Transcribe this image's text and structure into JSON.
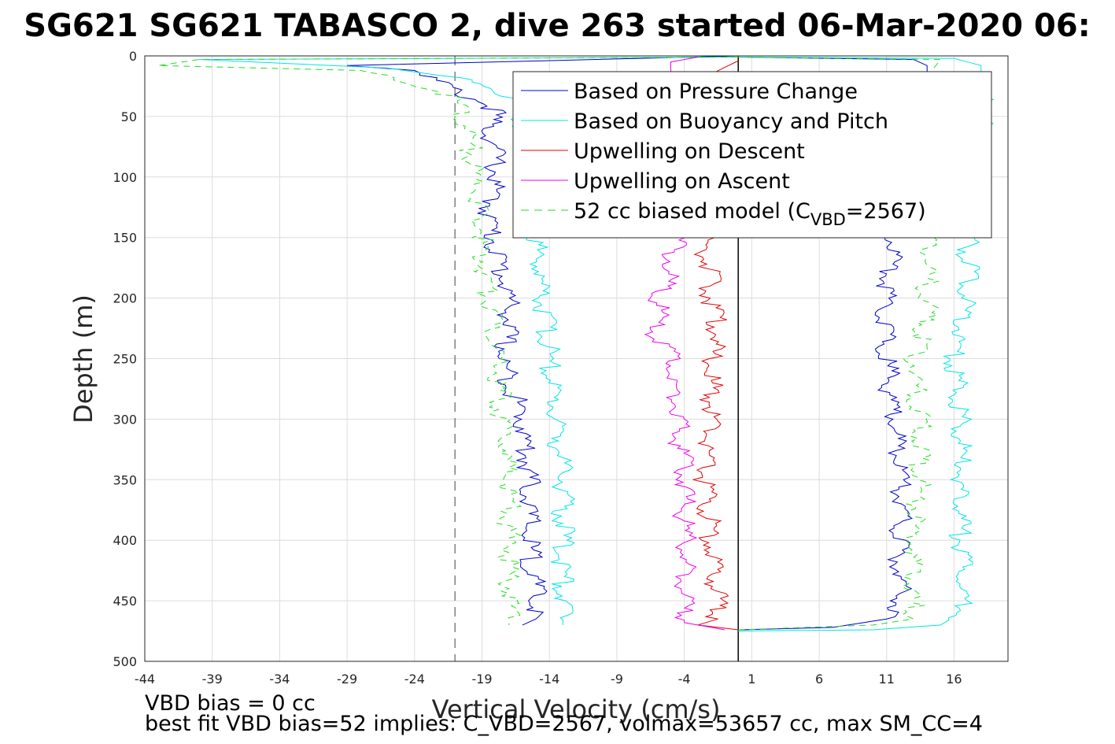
{
  "title": "SG621 SG621 TABASCO 2, dive 263 started 06-Mar-2020 06:",
  "footer": {
    "line1": "VBD bias = 0 cc",
    "line2": "best fit VBD bias=52 implies: C_VBD=2567, volmax=53657 cc, max SM_CC=4"
  },
  "chart_data": {
    "type": "line",
    "xlabel": "Vertical Velocity (cm/s)",
    "ylabel": "Depth (m)",
    "xlim": [
      -44,
      20
    ],
    "ylim": [
      0,
      500
    ],
    "y_reversed": true,
    "grid": true,
    "legend_placement": "top-right",
    "xticks": [
      -44,
      -39,
      -34,
      -29,
      -24,
      -19,
      -14,
      -9,
      -4,
      1,
      6,
      11,
      16
    ],
    "yticks": [
      0,
      50,
      100,
      150,
      200,
      250,
      300,
      350,
      400,
      450,
      500
    ],
    "reference_lines": [
      {
        "x": -21,
        "style": "dashed",
        "color": "#808080"
      },
      {
        "x": 0,
        "style": "solid",
        "color": "#000000"
      }
    ],
    "legend": [
      {
        "label": "Based on Pressure Change",
        "color": "#0000cc",
        "style": "solid"
      },
      {
        "label": "Based on Buoyancy and Pitch",
        "color": "#00e5e5",
        "style": "solid"
      },
      {
        "label": "Upwelling on Descent",
        "color": "#e00000",
        "style": "solid"
      },
      {
        "label": "Upwelling on Ascent",
        "color": "#ee00ee",
        "style": "solid"
      },
      {
        "label_main": "52 cc biased model (C",
        "label_sub": "VBD",
        "label_end": "=2567)",
        "color": "#22dd22",
        "style": "dashed"
      }
    ],
    "series": [
      {
        "name": "Based on Pressure Change",
        "color": "#0000cc",
        "descent": [
          [
            0,
            0
          ],
          [
            -29,
            8
          ],
          [
            -24,
            12
          ],
          [
            -22,
            22
          ],
          [
            -21,
            30
          ],
          [
            -19,
            38
          ],
          [
            -18,
            45
          ],
          [
            -18.5,
            60
          ],
          [
            -18,
            80
          ],
          [
            -18,
            100
          ],
          [
            -18.5,
            130
          ],
          [
            -18,
            160
          ],
          [
            -17,
            200
          ],
          [
            -17,
            220
          ],
          [
            -17.5,
            250
          ],
          [
            -16,
            300
          ],
          [
            -15.5,
            350
          ],
          [
            -15.5,
            400
          ],
          [
            -15,
            450
          ],
          [
            -15,
            465
          ],
          [
            -16,
            470
          ]
        ],
        "ascent": [
          [
            0,
            474
          ],
          [
            7,
            472
          ],
          [
            11,
            465
          ],
          [
            12,
            450
          ],
          [
            12,
            400
          ],
          [
            12,
            350
          ],
          [
            11.5,
            300
          ],
          [
            11,
            250
          ],
          [
            11,
            200
          ],
          [
            11.5,
            150
          ],
          [
            12,
            120
          ],
          [
            12.5,
            80
          ],
          [
            13,
            40
          ],
          [
            14,
            20
          ],
          [
            14,
            8
          ],
          [
            13,
            3
          ],
          [
            0,
            1
          ]
        ]
      },
      {
        "name": "Based on Buoyancy and Pitch",
        "color": "#00e5e5",
        "descent": [
          [
            0,
            1
          ],
          [
            -40,
            3
          ],
          [
            -26,
            10
          ],
          [
            -21,
            18
          ],
          [
            -18,
            25
          ],
          [
            -17,
            35
          ],
          [
            -16,
            60
          ],
          [
            -15.5,
            100
          ],
          [
            -15,
            150
          ],
          [
            -14.5,
            200
          ],
          [
            -14,
            250
          ],
          [
            -13.5,
            300
          ],
          [
            -13,
            350
          ],
          [
            -13,
            400
          ],
          [
            -13,
            450
          ],
          [
            -13,
            470
          ]
        ],
        "ascent": [
          [
            0,
            475
          ],
          [
            10,
            474
          ],
          [
            15,
            470
          ],
          [
            16.5,
            460
          ],
          [
            16.5,
            400
          ],
          [
            16.5,
            350
          ],
          [
            16.5,
            300
          ],
          [
            16,
            250
          ],
          [
            17,
            200
          ],
          [
            17,
            150
          ],
          [
            17,
            100
          ],
          [
            18,
            60
          ],
          [
            18,
            30
          ],
          [
            18,
            8
          ],
          [
            16,
            2
          ],
          [
            0,
            1
          ]
        ]
      },
      {
        "name": "Upwelling on Descent",
        "color": "#e00000",
        "values": [
          [
            0,
            4
          ],
          [
            -2,
            15
          ],
          [
            -2,
            40
          ],
          [
            -2.5,
            80
          ],
          [
            -2,
            120
          ],
          [
            -2.5,
            150
          ],
          [
            -2,
            200
          ],
          [
            -1.5,
            220
          ],
          [
            -2,
            250
          ],
          [
            -2,
            300
          ],
          [
            -2.5,
            350
          ],
          [
            -2,
            400
          ],
          [
            -1.5,
            450
          ],
          [
            -1.5,
            465
          ],
          [
            -3,
            470
          ],
          [
            0,
            474
          ]
        ]
      },
      {
        "name": "Upwelling on Ascent",
        "color": "#ee00ee",
        "values": [
          [
            -1,
            474
          ],
          [
            -4,
            468
          ],
          [
            -4,
            450
          ],
          [
            -4,
            400
          ],
          [
            -4,
            350
          ],
          [
            -4.5,
            300
          ],
          [
            -4.5,
            280
          ],
          [
            -5,
            250
          ],
          [
            -6,
            230
          ],
          [
            -6,
            210
          ],
          [
            -5.5,
            190
          ],
          [
            -5,
            170
          ],
          [
            -4.5,
            150
          ],
          [
            -4.5,
            100
          ],
          [
            -5,
            50
          ],
          [
            -5,
            20
          ],
          [
            -5,
            5
          ],
          [
            -3,
            1
          ]
        ]
      },
      {
        "name": "52 cc biased model (C_VBD=2567)",
        "color": "#22dd22",
        "dashed": true,
        "descent": [
          [
            0,
            1
          ],
          [
            -40,
            3
          ],
          [
            -43,
            8
          ],
          [
            -28,
            12
          ],
          [
            -24,
            22
          ],
          [
            -21,
            35
          ],
          [
            -20,
            60
          ],
          [
            -19.5,
            100
          ],
          [
            -19,
            150
          ],
          [
            -18.5,
            200
          ],
          [
            -18,
            250
          ],
          [
            -17.5,
            300
          ],
          [
            -17,
            350
          ],
          [
            -17,
            400
          ],
          [
            -17,
            450
          ],
          [
            -17,
            470
          ]
        ],
        "ascent": [
          [
            0,
            474
          ],
          [
            10,
            470
          ],
          [
            13,
            465
          ],
          [
            13,
            450
          ],
          [
            13,
            400
          ],
          [
            13.5,
            350
          ],
          [
            13.5,
            300
          ],
          [
            13,
            250
          ],
          [
            14,
            220
          ],
          [
            14,
            200
          ],
          [
            14,
            150
          ],
          [
            14,
            120
          ],
          [
            14,
            80
          ],
          [
            14,
            40
          ],
          [
            14.5,
            10
          ],
          [
            15,
            3
          ],
          [
            0,
            1
          ]
        ]
      }
    ]
  }
}
